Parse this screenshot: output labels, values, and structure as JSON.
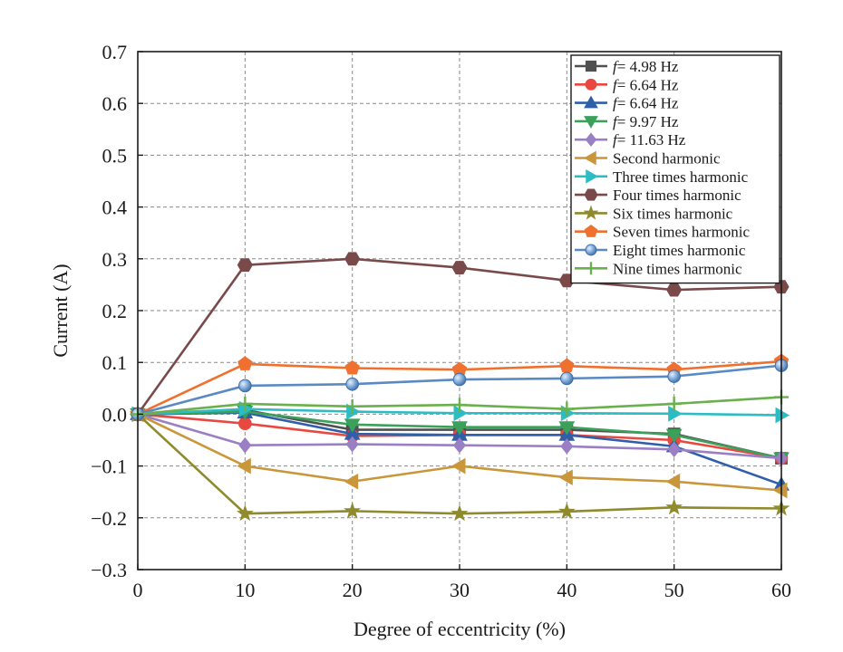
{
  "chart_data": {
    "type": "line",
    "title": "",
    "xlabel": "Degree of eccentricity (%)",
    "ylabel": "Current (A)",
    "xlim": [
      0,
      60
    ],
    "ylim": [
      -0.3,
      0.7
    ],
    "x": [
      0,
      10,
      20,
      30,
      40,
      50,
      60
    ],
    "x_ticks": [
      0,
      10,
      20,
      30,
      40,
      50,
      60
    ],
    "x_tick_labels": [
      "0",
      "10",
      "20",
      "30",
      "40",
      "50",
      "60"
    ],
    "y_ticks": [
      0.7,
      0.6,
      0.5,
      0.4,
      0.3,
      0.2,
      0.1,
      0.0,
      -0.1,
      -0.2,
      -0.3
    ],
    "y_tick_labels": [
      "0.7",
      "0.6",
      "0.5",
      "0.4",
      "0.3",
      "0.2",
      "0.1",
      "0.0",
      "−0.1",
      "−0.2",
      "−0.3"
    ],
    "grid": true,
    "legend_position": "top-right",
    "series": [
      {
        "name": "f",
        "label_suffix": "= 4.98 Hz",
        "italic_prefix": true,
        "color": "#505050",
        "marker": "square",
        "values": [
          0,
          0.008,
          -0.03,
          -0.03,
          -0.03,
          -0.038,
          -0.085
        ]
      },
      {
        "name": "f",
        "label_suffix": "= 6.64 Hz",
        "italic_prefix": true,
        "color": "#e8483f",
        "marker": "circle",
        "values": [
          0,
          -0.018,
          -0.042,
          -0.04,
          -0.04,
          -0.05,
          -0.085
        ]
      },
      {
        "name": "f",
        "label_suffix": "= 6.64 Hz",
        "italic_prefix": true,
        "color": "#2f5fa8",
        "marker": "triangle-up",
        "values": [
          0,
          0.003,
          -0.038,
          -0.04,
          -0.04,
          -0.062,
          -0.136
        ]
      },
      {
        "name": "f",
        "label_suffix": "= 9.97 Hz",
        "italic_prefix": true,
        "color": "#3aa05a",
        "marker": "triangle-down",
        "values": [
          0,
          0.005,
          -0.02,
          -0.025,
          -0.025,
          -0.04,
          -0.085
        ]
      },
      {
        "name": "f",
        "label_suffix": "= 11.63 Hz",
        "italic_prefix": true,
        "color": "#9a7fc4",
        "marker": "diamond",
        "values": [
          0,
          -0.06,
          -0.058,
          -0.06,
          -0.062,
          -0.068,
          -0.085
        ]
      },
      {
        "name": "Second harmonic",
        "label_suffix": "",
        "italic_prefix": false,
        "color": "#c9973a",
        "marker": "triangle-left",
        "values": [
          0,
          -0.1,
          -0.13,
          -0.1,
          -0.122,
          -0.13,
          -0.147
        ]
      },
      {
        "name": "Three times harmonic",
        "label_suffix": "",
        "italic_prefix": false,
        "color": "#2dbcc4",
        "marker": "triangle-right",
        "values": [
          0,
          0.01,
          0.005,
          0.002,
          0.002,
          0.001,
          -0.002
        ]
      },
      {
        "name": "Four times harmonic",
        "label_suffix": "",
        "italic_prefix": false,
        "color": "#7a4a4a",
        "marker": "hexagon",
        "values": [
          0,
          0.288,
          0.3,
          0.283,
          0.258,
          0.24,
          0.246
        ]
      },
      {
        "name": "Six times harmonic",
        "label_suffix": "",
        "italic_prefix": false,
        "color": "#8f8a2c",
        "marker": "star",
        "values": [
          0,
          -0.192,
          -0.187,
          -0.192,
          -0.188,
          -0.18,
          -0.182
        ]
      },
      {
        "name": "Seven times harmonic",
        "label_suffix": "",
        "italic_prefix": false,
        "color": "#f07030",
        "marker": "pentagon",
        "values": [
          0,
          0.097,
          0.089,
          0.086,
          0.093,
          0.086,
          0.102
        ]
      },
      {
        "name": "Eight times harmonic",
        "label_suffix": "",
        "italic_prefix": false,
        "color": "#5a8ac4",
        "marker": "sphere",
        "values": [
          0,
          0.055,
          0.058,
          0.067,
          0.069,
          0.073,
          0.094
        ]
      },
      {
        "name": "Nine times harmonic",
        "label_suffix": "",
        "italic_prefix": false,
        "color": "#6ab04c",
        "marker": "plus",
        "values": [
          0,
          0.02,
          0.015,
          0.018,
          0.01,
          0.02,
          0.033
        ]
      }
    ]
  }
}
